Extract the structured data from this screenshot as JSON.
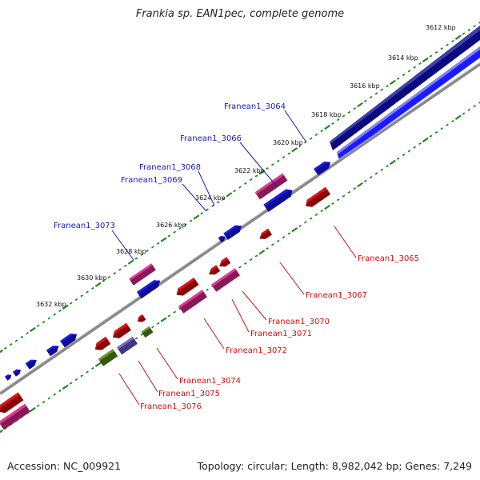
{
  "title": "Frankia sp. EAN1pec, complete genome",
  "footer": {
    "accession": "Accession: NC_009921",
    "summary": "Topology: circular; Length: 8,982,042 bp; Genes: 7,249"
  },
  "scale": {
    "unit": "kbp",
    "ticks": [
      "3612 kbp",
      "3614 kbp",
      "3616 kbp",
      "3618 kbp",
      "3620 kbp",
      "3622 kbp",
      "3624 kbp",
      "3626 kbp",
      "3628 kbp",
      "3630 kbp",
      "3632 kbp"
    ]
  },
  "genes_top": [
    "Franean1_3064",
    "Franean1_3066",
    "Franean1_3068",
    "Franean1_3069",
    "Franean1_3073"
  ],
  "genes_bottom": [
    "Franean1_3065",
    "Franean1_3067",
    "Franean1_3070",
    "Franean1_3071",
    "Franean1_3072",
    "Franean1_3074",
    "Franean1_3075",
    "Franean1_3076"
  ],
  "colors": {
    "forward_gene": "#1a1aff",
    "reverse_gene": "#ee1111",
    "rna_gene": "#ee3399",
    "other_gene": "#669922",
    "pseudo_gene": "#7766dd",
    "backbone": "#888888",
    "contig_dark": "#0a0a7a",
    "contig": "#1a1aff",
    "tick": "#228822",
    "label_top": "#1a1aaa",
    "label_bottom": "#cc1111"
  }
}
